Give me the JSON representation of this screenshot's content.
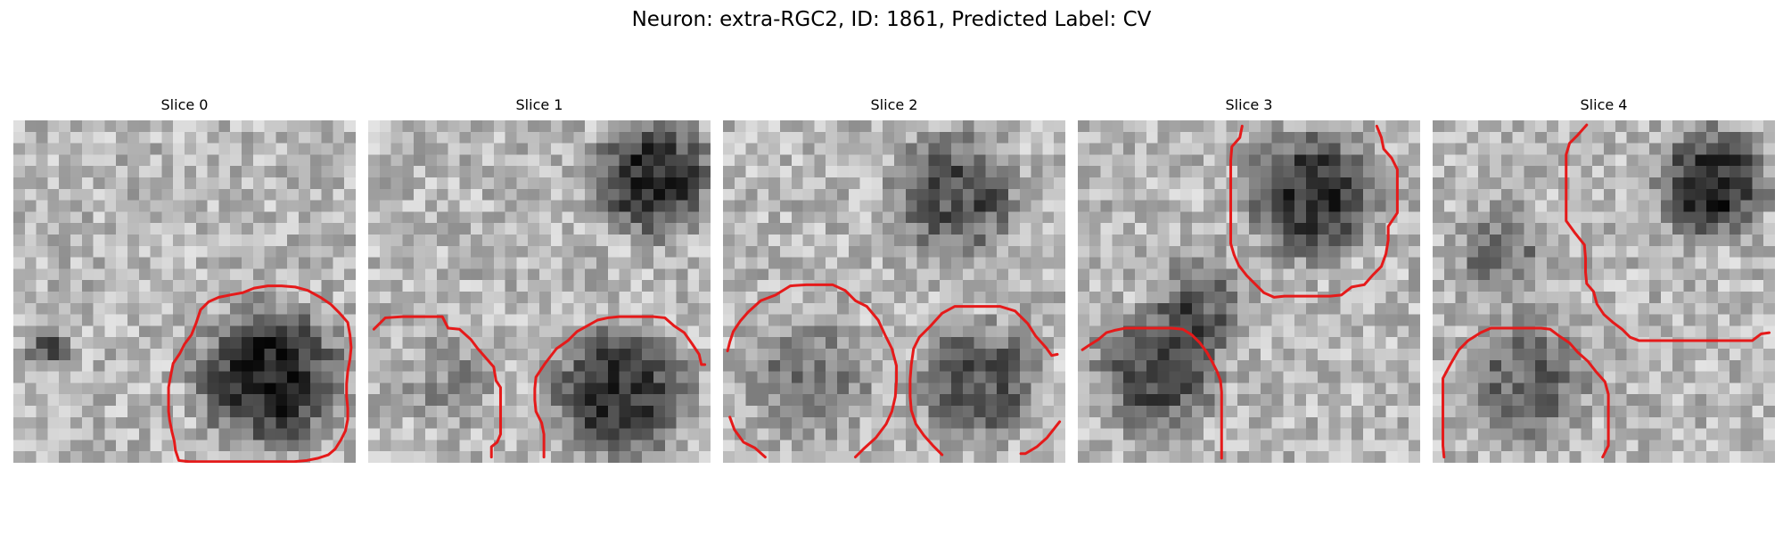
{
  "figure": {
    "title": "Neuron: extra-RGC2, ID: 1861, Predicted Label: CV",
    "contour_color": "#e51a1a",
    "colormap": "grayscale",
    "panels": [
      {
        "title": "Slice 0"
      },
      {
        "title": "Slice 1"
      },
      {
        "title": "Slice 2"
      },
      {
        "title": "Slice 3"
      },
      {
        "title": "Slice 4"
      }
    ]
  }
}
